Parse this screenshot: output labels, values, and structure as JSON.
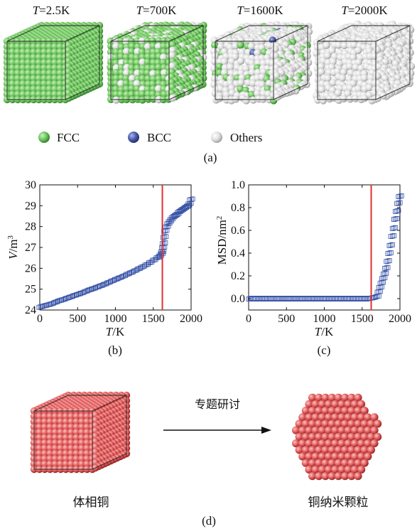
{
  "panel_a": {
    "panels": [
      {
        "label_var": "T",
        "label_rest": "=2.5K"
      },
      {
        "label_var": "T",
        "label_rest": "=700K"
      },
      {
        "label_var": "T",
        "label_rest": "=1600K"
      },
      {
        "label_var": "T",
        "label_rest": "=2000K"
      }
    ],
    "legend": [
      {
        "label": "FCC",
        "color": "#6cc35c"
      },
      {
        "label": "BCC",
        "color": "#4a5aa8"
      },
      {
        "label": "Others",
        "color": "#e0e0e0"
      }
    ],
    "caption": "(a)"
  },
  "chart_data": [
    {
      "type": "scatter",
      "caption": "(b)",
      "ylabel_var": "V",
      "ylabel_unit": "/m",
      "ylabel_sup": "3",
      "xlabel_var": "T",
      "xlabel_unit": "/K",
      "xlim": [
        0,
        2000
      ],
      "ylim": [
        24,
        30
      ],
      "xticks": [
        "0",
        "500",
        "1000",
        "1500",
        "2000"
      ],
      "yticks": [
        "24",
        "25",
        "26",
        "27",
        "28",
        "29",
        "30"
      ],
      "vline_x": 1620,
      "vline_color": "#e03030",
      "marker_color": "#3a55a8",
      "series": [
        {
          "x": [
            10,
            60,
            110,
            160,
            210,
            260,
            310,
            360,
            410,
            460,
            510,
            560,
            610,
            660,
            710,
            760,
            810,
            860,
            910,
            960,
            1010,
            1060,
            1110,
            1160,
            1210,
            1260,
            1310,
            1360,
            1410,
            1460,
            1510,
            1560,
            1590,
            1610,
            1620,
            1630,
            1640,
            1650,
            1660,
            1680,
            1700,
            1720,
            1740,
            1760,
            1780,
            1800,
            1820,
            1840,
            1860,
            1880,
            1900,
            1920,
            1940,
            1960,
            1980,
            2000
          ],
          "y": [
            24.15,
            24.2,
            24.25,
            24.3,
            24.38,
            24.45,
            24.5,
            24.57,
            24.63,
            24.7,
            24.76,
            24.82,
            24.9,
            24.97,
            25.03,
            25.1,
            25.17,
            25.24,
            25.32,
            25.4,
            25.48,
            25.55,
            25.63,
            25.72,
            25.8,
            25.89,
            25.98,
            26.07,
            26.17,
            26.28,
            26.4,
            26.52,
            26.6,
            26.7,
            26.8,
            27.0,
            27.2,
            27.5,
            27.8,
            28.0,
            28.15,
            28.25,
            28.35,
            28.45,
            28.5,
            28.55,
            28.6,
            28.7,
            28.75,
            28.8,
            28.85,
            28.9,
            28.95,
            29.0,
            29.1,
            29.3
          ]
        }
      ]
    },
    {
      "type": "scatter",
      "caption": "(c)",
      "ylabel_text": "MSD/nm",
      "ylabel_sup": "2",
      "xlabel_var": "T",
      "xlabel_unit": "/K",
      "xlim": [
        0,
        2000
      ],
      "ylim": [
        -0.1,
        1.0
      ],
      "xticks": [
        "0",
        "500",
        "1000",
        "1500",
        "2000"
      ],
      "yticks": [
        "0.0",
        "0.2",
        "0.4",
        "0.6",
        "0.8",
        "1.0"
      ],
      "vline_x": 1620,
      "vline_color": "#e03030",
      "marker_color": "#3a55a8",
      "series": [
        {
          "x": [
            20,
            60,
            100,
            140,
            180,
            220,
            260,
            300,
            340,
            380,
            420,
            460,
            500,
            540,
            580,
            620,
            660,
            700,
            740,
            780,
            820,
            860,
            900,
            940,
            980,
            1020,
            1060,
            1100,
            1140,
            1180,
            1220,
            1260,
            1300,
            1340,
            1380,
            1420,
            1460,
            1500,
            1540,
            1580,
            1620,
            1660,
            1700,
            1720,
            1740,
            1760,
            1780,
            1800,
            1820,
            1840,
            1860,
            1880,
            1900,
            1920,
            1940,
            1960,
            1980,
            2000
          ],
          "y": [
            0.0,
            0.0,
            0.0,
            0.0,
            0.0,
            0.0,
            0.0,
            0.0,
            0.0,
            0.0,
            0.0,
            0.0,
            0.0,
            0.0,
            0.0,
            0.0,
            0.0,
            0.0,
            0.0,
            0.0,
            0.0,
            0.0,
            0.0,
            0.0,
            0.0,
            0.0,
            0.0,
            0.0,
            0.0,
            0.0,
            0.0,
            0.0,
            0.0,
            0.0,
            0.0,
            0.0,
            0.0,
            0.0,
            0.0,
            0.0,
            0.005,
            0.01,
            0.02,
            0.06,
            0.1,
            0.14,
            0.18,
            0.22,
            0.27,
            0.33,
            0.4,
            0.47,
            0.55,
            0.62,
            0.7,
            0.77,
            0.84,
            0.9
          ]
        }
      ]
    }
  ],
  "panel_d": {
    "arrow_label": "专题研讨",
    "left_label": "体相铜",
    "right_label": "铜纳米颗粒",
    "sphere_color": "#e05a5a",
    "caption": "(d)"
  }
}
